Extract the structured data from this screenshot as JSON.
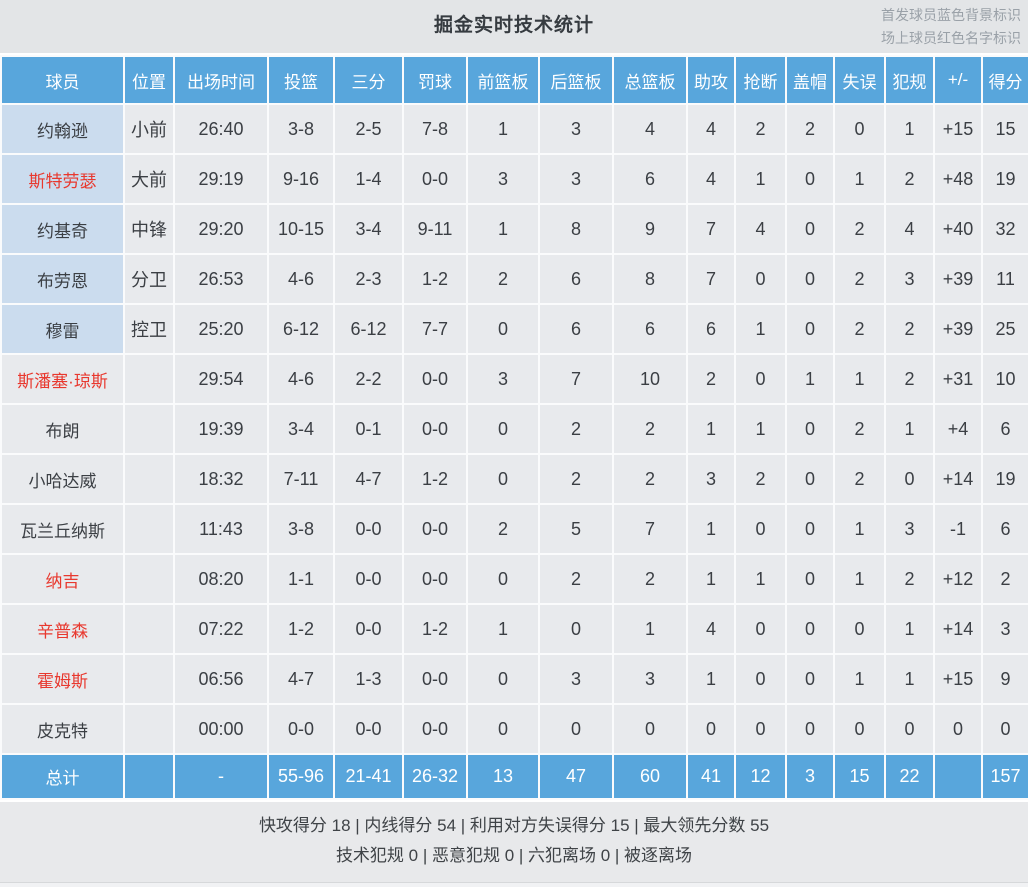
{
  "title": "掘金实时技术统计",
  "legend": {
    "starters_note": "首发球员蓝色背景标识",
    "on_court_note": "场上球员红色名字标识"
  },
  "columns": [
    "球员",
    "位置",
    "出场时间",
    "投篮",
    "三分",
    "罚球",
    "前篮板",
    "后篮板",
    "总篮板",
    "助攻",
    "抢断",
    "盖帽",
    "失误",
    "犯规",
    "+/-",
    "得分"
  ],
  "players": [
    {
      "name": "约翰逊",
      "position": "小前",
      "starter": true,
      "on_court": false,
      "stats": [
        "26:40",
        "3-8",
        "2-5",
        "7-8",
        "1",
        "3",
        "4",
        "4",
        "2",
        "2",
        "0",
        "1",
        "+15",
        "15"
      ]
    },
    {
      "name": "斯特劳瑟",
      "position": "大前",
      "starter": true,
      "on_court": true,
      "stats": [
        "29:19",
        "9-16",
        "1-4",
        "0-0",
        "3",
        "3",
        "6",
        "4",
        "1",
        "0",
        "1",
        "2",
        "+48",
        "19"
      ]
    },
    {
      "name": "约基奇",
      "position": "中锋",
      "starter": true,
      "on_court": false,
      "stats": [
        "29:20",
        "10-15",
        "3-4",
        "9-11",
        "1",
        "8",
        "9",
        "7",
        "4",
        "0",
        "2",
        "4",
        "+40",
        "32"
      ]
    },
    {
      "name": "布劳恩",
      "position": "分卫",
      "starter": true,
      "on_court": false,
      "stats": [
        "26:53",
        "4-6",
        "2-3",
        "1-2",
        "2",
        "6",
        "8",
        "7",
        "0",
        "0",
        "2",
        "3",
        "+39",
        "11"
      ]
    },
    {
      "name": "穆雷",
      "position": "控卫",
      "starter": true,
      "on_court": false,
      "stats": [
        "25:20",
        "6-12",
        "6-12",
        "7-7",
        "0",
        "6",
        "6",
        "6",
        "1",
        "0",
        "2",
        "2",
        "+39",
        "25"
      ]
    },
    {
      "name": "斯潘塞·琼斯",
      "position": "",
      "starter": false,
      "on_court": true,
      "stats": [
        "29:54",
        "4-6",
        "2-2",
        "0-0",
        "3",
        "7",
        "10",
        "2",
        "0",
        "1",
        "1",
        "2",
        "+31",
        "10"
      ]
    },
    {
      "name": "布朗",
      "position": "",
      "starter": false,
      "on_court": false,
      "stats": [
        "19:39",
        "3-4",
        "0-1",
        "0-0",
        "0",
        "2",
        "2",
        "1",
        "1",
        "0",
        "2",
        "1",
        "+4",
        "6"
      ]
    },
    {
      "name": "小哈达威",
      "position": "",
      "starter": false,
      "on_court": false,
      "stats": [
        "18:32",
        "7-11",
        "4-7",
        "1-2",
        "0",
        "2",
        "2",
        "3",
        "2",
        "0",
        "2",
        "0",
        "+14",
        "19"
      ]
    },
    {
      "name": "瓦兰丘纳斯",
      "position": "",
      "starter": false,
      "on_court": false,
      "stats": [
        "11:43",
        "3-8",
        "0-0",
        "0-0",
        "2",
        "5",
        "7",
        "1",
        "0",
        "0",
        "1",
        "3",
        "-1",
        "6"
      ]
    },
    {
      "name": "纳吉",
      "position": "",
      "starter": false,
      "on_court": true,
      "stats": [
        "08:20",
        "1-1",
        "0-0",
        "0-0",
        "0",
        "2",
        "2",
        "1",
        "1",
        "0",
        "1",
        "2",
        "+12",
        "2"
      ]
    },
    {
      "name": "辛普森",
      "position": "",
      "starter": false,
      "on_court": true,
      "stats": [
        "07:22",
        "1-2",
        "0-0",
        "1-2",
        "1",
        "0",
        "1",
        "4",
        "0",
        "0",
        "0",
        "1",
        "+14",
        "3"
      ]
    },
    {
      "name": "霍姆斯",
      "position": "",
      "starter": false,
      "on_court": true,
      "stats": [
        "06:56",
        "4-7",
        "1-3",
        "0-0",
        "0",
        "3",
        "3",
        "1",
        "0",
        "0",
        "1",
        "1",
        "+15",
        "9"
      ]
    },
    {
      "name": "皮克特",
      "position": "",
      "starter": false,
      "on_court": false,
      "stats": [
        "00:00",
        "0-0",
        "0-0",
        "0-0",
        "0",
        "0",
        "0",
        "0",
        "0",
        "0",
        "0",
        "0",
        "0",
        "0"
      ]
    }
  ],
  "total_row": {
    "label": "总计",
    "position": "",
    "stats": [
      "-",
      "55-96",
      "21-41",
      "26-32",
      "13",
      "47",
      "60",
      "41",
      "12",
      "3",
      "15",
      "22",
      "",
      "157"
    ]
  },
  "summary": {
    "line1": "快攻得分 18 | 内线得分 54 | 利用对方失误得分 15 | 最大领先分数 55",
    "line2": "技术犯规 0 | 恶意犯规 0 | 六犯离场 0 | 被逐离场"
  },
  "colors": {
    "accent_blue": "#58a6dc",
    "starter_cell_blue": "#cbdcee",
    "on_court_red": "#e8382e",
    "cell_gray": "#e8eaed",
    "title_band_gray": "#e3e5e7",
    "footer_band_gray": "#e8e9eb"
  }
}
